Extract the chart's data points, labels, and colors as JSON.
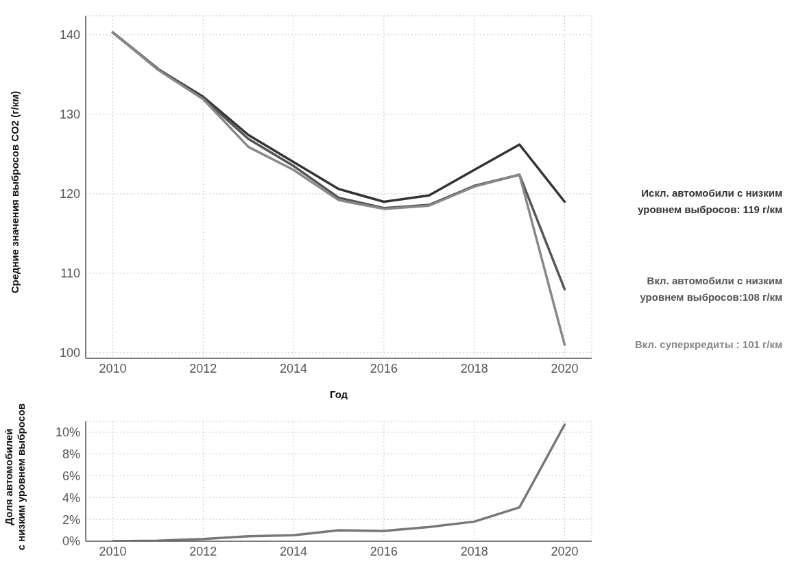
{
  "chart_data": [
    {
      "type": "line",
      "xlabel": "Год",
      "ylabel": "Средние значения выбросов CO2 (г/км)",
      "x": [
        2010,
        2011,
        2012,
        2013,
        2014,
        2015,
        2016,
        2017,
        2018,
        2019,
        2020
      ],
      "xlim": [
        2009.4,
        2020.6
      ],
      "xticks": [
        2010,
        2012,
        2014,
        2016,
        2018,
        2020
      ],
      "ylim": [
        99.3,
        142.4
      ],
      "yticks": [
        100,
        110,
        120,
        130,
        140
      ],
      "grid": true,
      "series": [
        {
          "name": "Искл. автомобили с низким уровнем выбросов: 119 г/км",
          "color": "#333333",
          "values": [
            140.3,
            135.7,
            132.2,
            127.4,
            124.0,
            120.6,
            119.0,
            119.8,
            123.0,
            126.2,
            119
          ]
        },
        {
          "name": "Вкл. автомобили с низким уровнем выбросов:108 г/км",
          "color": "#555555",
          "values": [
            140.3,
            135.7,
            132.0,
            126.9,
            123.5,
            119.5,
            118.2,
            118.6,
            121.0,
            122.4,
            108
          ]
        },
        {
          "name": "Вкл. суперкредиты : 101 г/км",
          "color": "#888888",
          "values": [
            140.3,
            135.6,
            131.9,
            125.9,
            123.0,
            119.2,
            118.1,
            118.5,
            120.9,
            122.4,
            101
          ]
        }
      ]
    },
    {
      "type": "line",
      "ylabel": "Доля автомобилей\nс низким уровнем выбросов",
      "x": [
        2010,
        2011,
        2012,
        2013,
        2014,
        2015,
        2016,
        2017,
        2018,
        2019,
        2020
      ],
      "xlim": [
        2009.4,
        2020.6
      ],
      "xticks": [
        2010,
        2012,
        2014,
        2016,
        2018,
        2020
      ],
      "ylim": [
        0,
        11
      ],
      "yticks": [
        {
          "value": 0,
          "label": "0%"
        },
        {
          "value": 2,
          "label": "2%"
        },
        {
          "value": 4,
          "label": "4%"
        },
        {
          "value": 6,
          "label": "6%"
        },
        {
          "value": 8,
          "label": "8%"
        },
        {
          "value": 10,
          "label": "10%"
        }
      ],
      "grid": true,
      "series": [
        {
          "color": "#777777",
          "values": [
            0,
            0.05,
            0.2,
            0.45,
            0.55,
            1.0,
            0.95,
            1.3,
            1.8,
            3.1,
            10.7
          ]
        }
      ]
    }
  ]
}
